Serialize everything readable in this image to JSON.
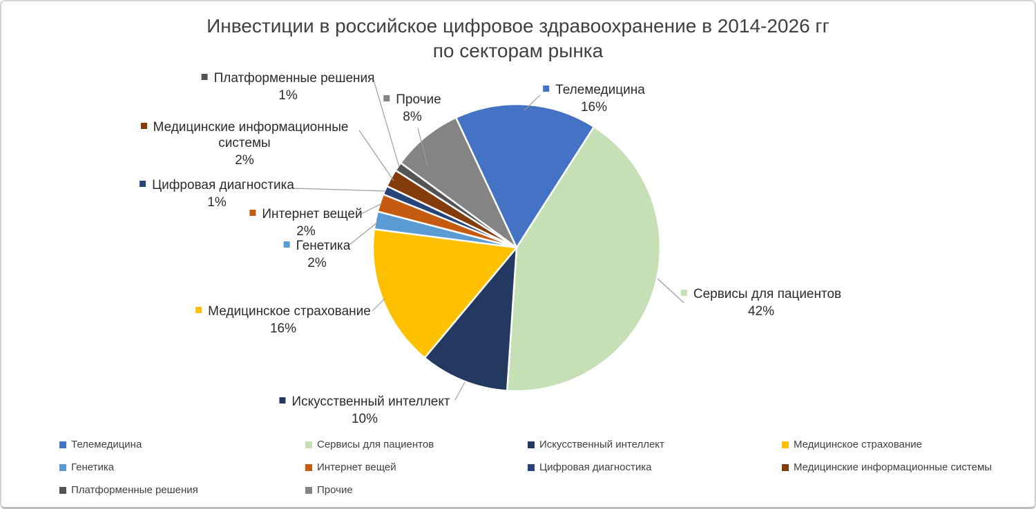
{
  "header": {
    "title_line1": "Инвестиции в российское цифровое здравоохранение в 2014-2026 гг",
    "title_line2": "по секторам рынка"
  },
  "chart_data": {
    "type": "pie",
    "title": "Инвестиции в российское цифровое здравоохранение в 2014-2026 гг по секторам рынка",
    "unit": "%",
    "start_angle_deg": -25,
    "direction": "clockwise",
    "legend_position": "bottom",
    "slices": [
      {
        "label": "Телемедицина",
        "value": 16,
        "data_label": "16%",
        "color": "#4472C4"
      },
      {
        "label": "Сервисы для пациентов",
        "value": 42,
        "data_label": "42%",
        "color": "#C5E0B4"
      },
      {
        "label": "Искусственный интеллект",
        "value": 10,
        "data_label": "10%",
        "color": "#24395F"
      },
      {
        "label": "Медицинское страхование",
        "value": 16,
        "data_label": "16%",
        "color": "#FFC000"
      },
      {
        "label": "Генетика",
        "value": 2,
        "data_label": "2%",
        "color": "#5B9BD5"
      },
      {
        "label": "Интернет вещей",
        "value": 2,
        "data_label": "2%",
        "color": "#C55A11"
      },
      {
        "label": "Цифровая диагностика",
        "value": 1,
        "data_label": "1%",
        "color": "#264478"
      },
      {
        "label": "Медицинские информационные системы",
        "value": 2,
        "data_label": "2%",
        "color": "#843C0C"
      },
      {
        "label": "Платформенные решения",
        "value": 1,
        "data_label": "1%",
        "color": "#545454"
      },
      {
        "label": "Прочие",
        "value": 8,
        "data_label": "8%",
        "color": "#848484"
      }
    ]
  },
  "legend": {
    "items": [
      "Телемедицина",
      "Сервисы для пациентов",
      "Искусственный интеллект",
      "Медицинское страхование",
      "Генетика",
      "Интернет вещей",
      "Цифровая диагностика",
      "Медицинские информационные системы",
      "Платформенные решения",
      "Прочие"
    ]
  }
}
